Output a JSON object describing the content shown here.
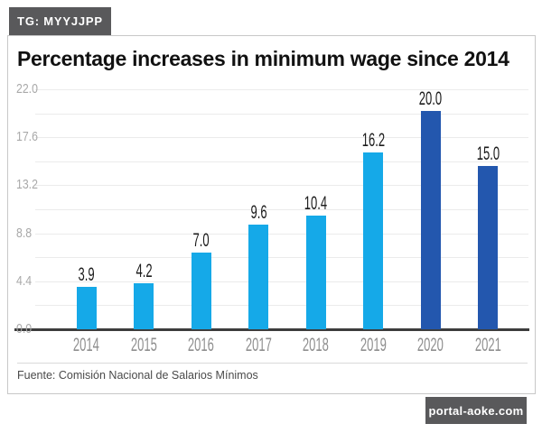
{
  "watermarks": {
    "top": "TG: MYYJJPP",
    "bottom": "portal-aoke.com"
  },
  "chart": {
    "title": "Percentage increases in minimum wage since 2014",
    "source": "Fuente: Comisión Nacional de Salarios Mínimos"
  },
  "chart_data": {
    "type": "bar",
    "title": "Percentage increases in minimum wage since 2014",
    "categories": [
      "2014",
      "2015",
      "2016",
      "2017",
      "2018",
      "2019",
      "2020",
      "2021"
    ],
    "values": [
      3.9,
      4.2,
      7.0,
      9.6,
      10.4,
      16.2,
      20.0,
      15.0
    ],
    "value_labels": [
      "3.9",
      "4.2",
      "7.0",
      "9.6",
      "10.4",
      "16.2",
      "20.0",
      "15.0"
    ],
    "bar_colors": [
      "#15a9e8",
      "#15a9e8",
      "#15a9e8",
      "#15a9e8",
      "#15a9e8",
      "#15a9e8",
      "#2357ae",
      "#2357ae"
    ],
    "y_ticks": [
      {
        "label": "0.0",
        "value": 0
      },
      {
        "label": "4.4",
        "value": 4.4
      },
      {
        "label": "8.8",
        "value": 8.8
      },
      {
        "label": "13.2",
        "value": 13.2
      },
      {
        "label": "17.6",
        "value": 17.6
      },
      {
        "label": "22.0",
        "value": 22
      }
    ],
    "gridline_step": 2.2,
    "ylim": [
      0,
      22
    ],
    "xlabel": "",
    "ylabel": "",
    "legend": "none",
    "grid": "horizontal",
    "source": "Fuente: Comisión Nacional de Salarios Mínimos",
    "colors": {
      "bar_light": "#15a9e8",
      "bar_dark": "#2357ae",
      "badge_background": "#59595b",
      "baseline": "#3d3d3d",
      "gridline": "#ebebeb"
    }
  }
}
